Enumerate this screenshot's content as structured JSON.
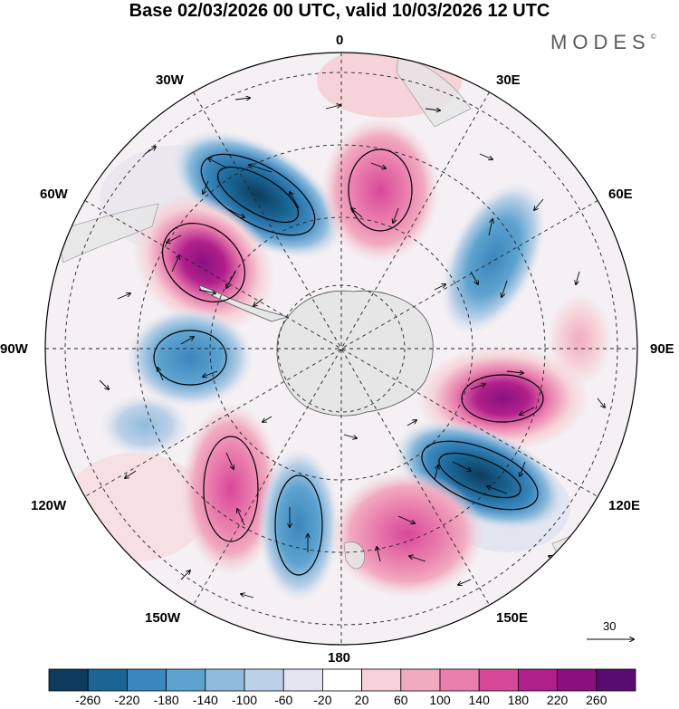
{
  "title": "Base 02/03/2026 00 UTC, valid 10/03/2026 12 UTC",
  "brand": "MODES",
  "brand_mark": "©",
  "longitude_labels": {
    "top": "0",
    "bottom": "180",
    "left": "90W",
    "right": "90E",
    "upper_left": "30W",
    "left_upper": "60W",
    "upper_right": "30E",
    "right_upper": "60E",
    "left_lower": "120W",
    "lower_left": "150W",
    "right_lower": "120E",
    "lower_right": "150E"
  },
  "reference_vector": {
    "label": "30"
  },
  "colorbar": {
    "tick_labels": [
      "-260",
      "-220",
      "-180",
      "-140",
      "-100",
      "-60",
      "-20",
      "20",
      "60",
      "100",
      "140",
      "180",
      "220",
      "260"
    ],
    "colors": [
      "#0d3b5e",
      "#1a6594",
      "#3b86bd",
      "#5ea3cf",
      "#8fbcdd",
      "#bcd1e8",
      "#e3e6f1",
      "#ffffff",
      "#f6d3d9",
      "#f1abc0",
      "#ea7fae",
      "#d84898",
      "#b0208a",
      "#8a1080",
      "#5a0b72"
    ]
  },
  "colors": {
    "land": "#e6e6e6",
    "grid": "#222222"
  }
}
